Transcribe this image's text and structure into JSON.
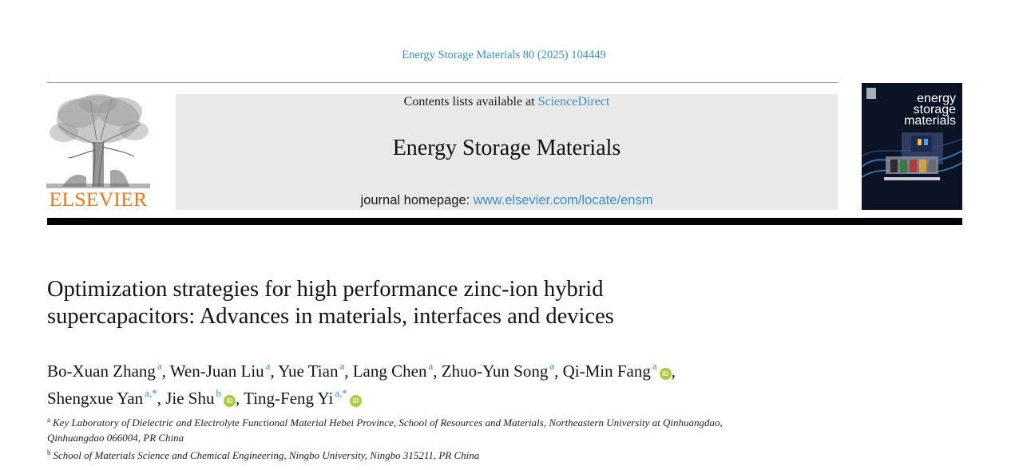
{
  "header": {
    "citation": "Energy Storage Materials 80 (2025) 104449",
    "publisher_wordmark": "ELSEVIER",
    "contents_prefix": "Contents lists available at ",
    "contents_link": "ScienceDirect",
    "journal_name": "Energy Storage Materials",
    "homepage_prefix": "journal homepage: ",
    "homepage_url": "www.elsevier.com/locate/ensm",
    "cover_title": [
      "energy",
      "storage",
      "materials"
    ]
  },
  "article": {
    "title_line1": "Optimization strategies for high performance zinc-ion hybrid",
    "title_line2": "supercapacitors: Advances in materials, interfaces and devices",
    "authors": [
      {
        "name": "Bo-Xuan Zhang",
        "aff": "a",
        "orcid": false
      },
      {
        "name": "Wen-Juan Liu",
        "aff": "a",
        "orcid": false
      },
      {
        "name": "Yue Tian",
        "aff": "a",
        "orcid": false
      },
      {
        "name": "Lang Chen",
        "aff": "a",
        "orcid": false
      },
      {
        "name": "Zhuo-Yun Song",
        "aff": "a",
        "orcid": false
      },
      {
        "name": "Qi-Min Fang",
        "aff": "a",
        "orcid": true
      },
      {
        "name": "Shengxue Yan",
        "aff": "a,*",
        "orcid": false
      },
      {
        "name": "Jie Shu",
        "aff": "b",
        "orcid": true
      },
      {
        "name": "Ting-Feng Yi",
        "aff": "a,*",
        "orcid": true
      }
    ],
    "affiliations": [
      {
        "label": "a",
        "text": "Key Laboratory of Dielectric and Electrolyte Functional Material Hebei Province, School of Resources and Materials, Northeastern University at Qinhuangdao,"
      },
      {
        "label": "",
        "text": "Qinhuangdao 066004, PR China"
      },
      {
        "label": "b",
        "text": "School of Materials Science and Chemical Engineering, Ningbo University, Ningbo 315211, PR China"
      }
    ],
    "orcid_glyph": "iD"
  },
  "colors": {
    "link": "#3a8fc1",
    "elsevier_orange": "#e4791e",
    "banner_bg": "#e9e9e9",
    "orcid_green": "#a6ce39"
  }
}
